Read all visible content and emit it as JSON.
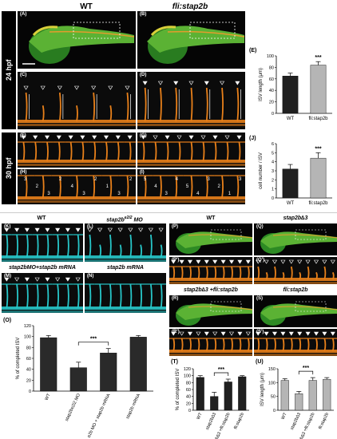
{
  "headers": {
    "wt_top": "WT",
    "fli_top": "fli:stap2b",
    "hpf24": "24 hpf",
    "hpf30": "30 hpf",
    "wt_k": "WT",
    "mo_l": "stap2b",
    "mo_l_sup": "e2i2",
    "mo_l_tail": " MO",
    "rescue_m": "stap2bMO+stap2b mRNA",
    "mrna_n": "stap2b mRNA",
    "wt_p": "WT",
    "delta_q": "stap2b∆3",
    "rescue_r": "stap2b∆3 +fli:stap2b",
    "fli_s": "fli:stap2b"
  },
  "panel_labels": [
    "(A)",
    "(B)",
    "(C)",
    "(D)",
    "(F)",
    "(G)",
    "(H)",
    "(I)",
    "(K)",
    "(L)",
    "(M)",
    "(N)",
    "(P)",
    "(Q)",
    "(P')",
    "(Q')",
    "(R)",
    "(S)",
    "(R')",
    "(S')",
    "(E)",
    "(J)",
    "(O)",
    "(T)",
    "(U)"
  ],
  "cell_numbers_h": [
    "3",
    "2",
    "3",
    "2",
    "4",
    "3",
    "2",
    "1",
    "3",
    "2"
  ],
  "cell_numbers_i": [
    "5",
    "4",
    "3",
    "4",
    "5",
    "4",
    "3",
    "2",
    "1",
    "3"
  ],
  "colors": {
    "embryo_green": "#3a9d2a",
    "vessel_orange": "#e8801a",
    "vessel_cyan": "#27c7c9",
    "bar_dark": "#202020",
    "bar_grey": "#b5b5b5"
  },
  "chart_data": [
    {
      "id": "E",
      "type": "bar",
      "categories": [
        "WT",
        "fli:stap2b"
      ],
      "values": [
        65,
        84
      ],
      "errors": [
        5,
        6
      ],
      "colors": [
        "#202020",
        "#b5b5b5"
      ],
      "ylabel": "ISV length (μm)",
      "ylim": [
        0,
        100
      ],
      "yticks": [
        0,
        20,
        40,
        60,
        80,
        100
      ],
      "annotations": [
        {
          "text": "***",
          "category": "fli:stap2b"
        }
      ]
    },
    {
      "id": "J",
      "type": "bar",
      "categories": [
        "WT",
        "fli:stap2b"
      ],
      "values": [
        3.2,
        4.4
      ],
      "errors": [
        0.5,
        0.6
      ],
      "colors": [
        "#202020",
        "#b5b5b5"
      ],
      "ylabel": "cell number / ISV",
      "ylim": [
        0,
        6
      ],
      "yticks": [
        0,
        1,
        2,
        3,
        4,
        5,
        6
      ],
      "annotations": [
        {
          "text": "***",
          "category": "fli:stap2b"
        }
      ]
    },
    {
      "id": "O",
      "type": "bar",
      "categories": [
        "WT",
        "stap2be2i2 MO",
        "stap2b MO + stap2b mRNA",
        "stap2b mRNA"
      ],
      "values": [
        98,
        43,
        70,
        99
      ],
      "errors": [
        4,
        10,
        8,
        3
      ],
      "colors": [
        "#2a2a2a",
        "#2a2a2a",
        "#2a2a2a",
        "#2a2a2a"
      ],
      "ylabel": "% of completed ISV",
      "ylim": [
        0,
        120
      ],
      "yticks": [
        0,
        20,
        40,
        60,
        80,
        100,
        120
      ],
      "annotations": [
        {
          "text": "***",
          "between": [
            1,
            2
          ]
        }
      ]
    },
    {
      "id": "T",
      "type": "bar",
      "categories": [
        "WT",
        "stap2b∆3",
        "stap2b∆3 +fli:stap2b",
        "fli:stap2b"
      ],
      "values": [
        95,
        40,
        82,
        97
      ],
      "errors": [
        5,
        12,
        8,
        3
      ],
      "colors": [
        "#202020",
        "#202020",
        "#202020",
        "#202020"
      ],
      "ylabel": "% of completed ISV",
      "ylim": [
        0,
        120
      ],
      "yticks": [
        0,
        20,
        40,
        60,
        80,
        100,
        120
      ],
      "annotations": [
        {
          "text": "***",
          "between": [
            1,
            2
          ]
        }
      ]
    },
    {
      "id": "U",
      "type": "bar",
      "categories": [
        "WT",
        "stap2b∆3",
        "stap2b∆3 +fli:stap2b",
        "fli:stap2b"
      ],
      "values": [
        108,
        60,
        108,
        112
      ],
      "errors": [
        6,
        8,
        10,
        6
      ],
      "colors": [
        "#b5b5b5",
        "#b5b5b5",
        "#b5b5b5",
        "#b5b5b5"
      ],
      "ylabel": "ISV length (μm)",
      "ylim": [
        0,
        150
      ],
      "yticks": [
        0,
        50,
        100,
        150
      ],
      "annotations": [
        {
          "text": "***",
          "between": [
            1,
            2
          ]
        }
      ]
    }
  ]
}
